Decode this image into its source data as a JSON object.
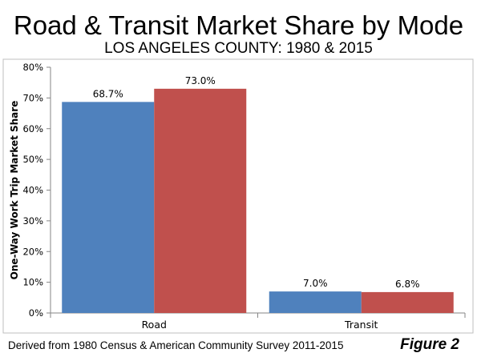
{
  "title": "Road & Transit Market Share by Mode",
  "subtitle": "LOS ANGELES COUNTY: 1980 & 2015",
  "footer": "Derived from 1980 Census & American Community Survey 2011-2015",
  "figure_label": "Figure 2",
  "colors": {
    "series_1980": "#4F81BD",
    "series_2015": "#C0504D",
    "axis": "#868686",
    "frame": "#bfbfbf"
  },
  "chart_data": {
    "type": "bar",
    "categories": [
      "Road",
      "Transit"
    ],
    "series": [
      {
        "values": [
          68.7,
          7.0
        ],
        "labels": [
          "68.7%",
          "7.0%"
        ]
      },
      {
        "values": [
          73.0,
          6.8
        ],
        "labels": [
          "73.0%",
          "6.8%"
        ]
      }
    ],
    "ylabel": "One-Way Work Trip Market Share",
    "ylim": [
      0,
      80
    ],
    "yticks": [
      0,
      10,
      20,
      30,
      40,
      50,
      60,
      70,
      80
    ],
    "ytick_labels": [
      "0%",
      "10%",
      "20%",
      "30%",
      "40%",
      "50%",
      "60%",
      "70%",
      "80%"
    ],
    "grid": false,
    "legend": "none"
  }
}
